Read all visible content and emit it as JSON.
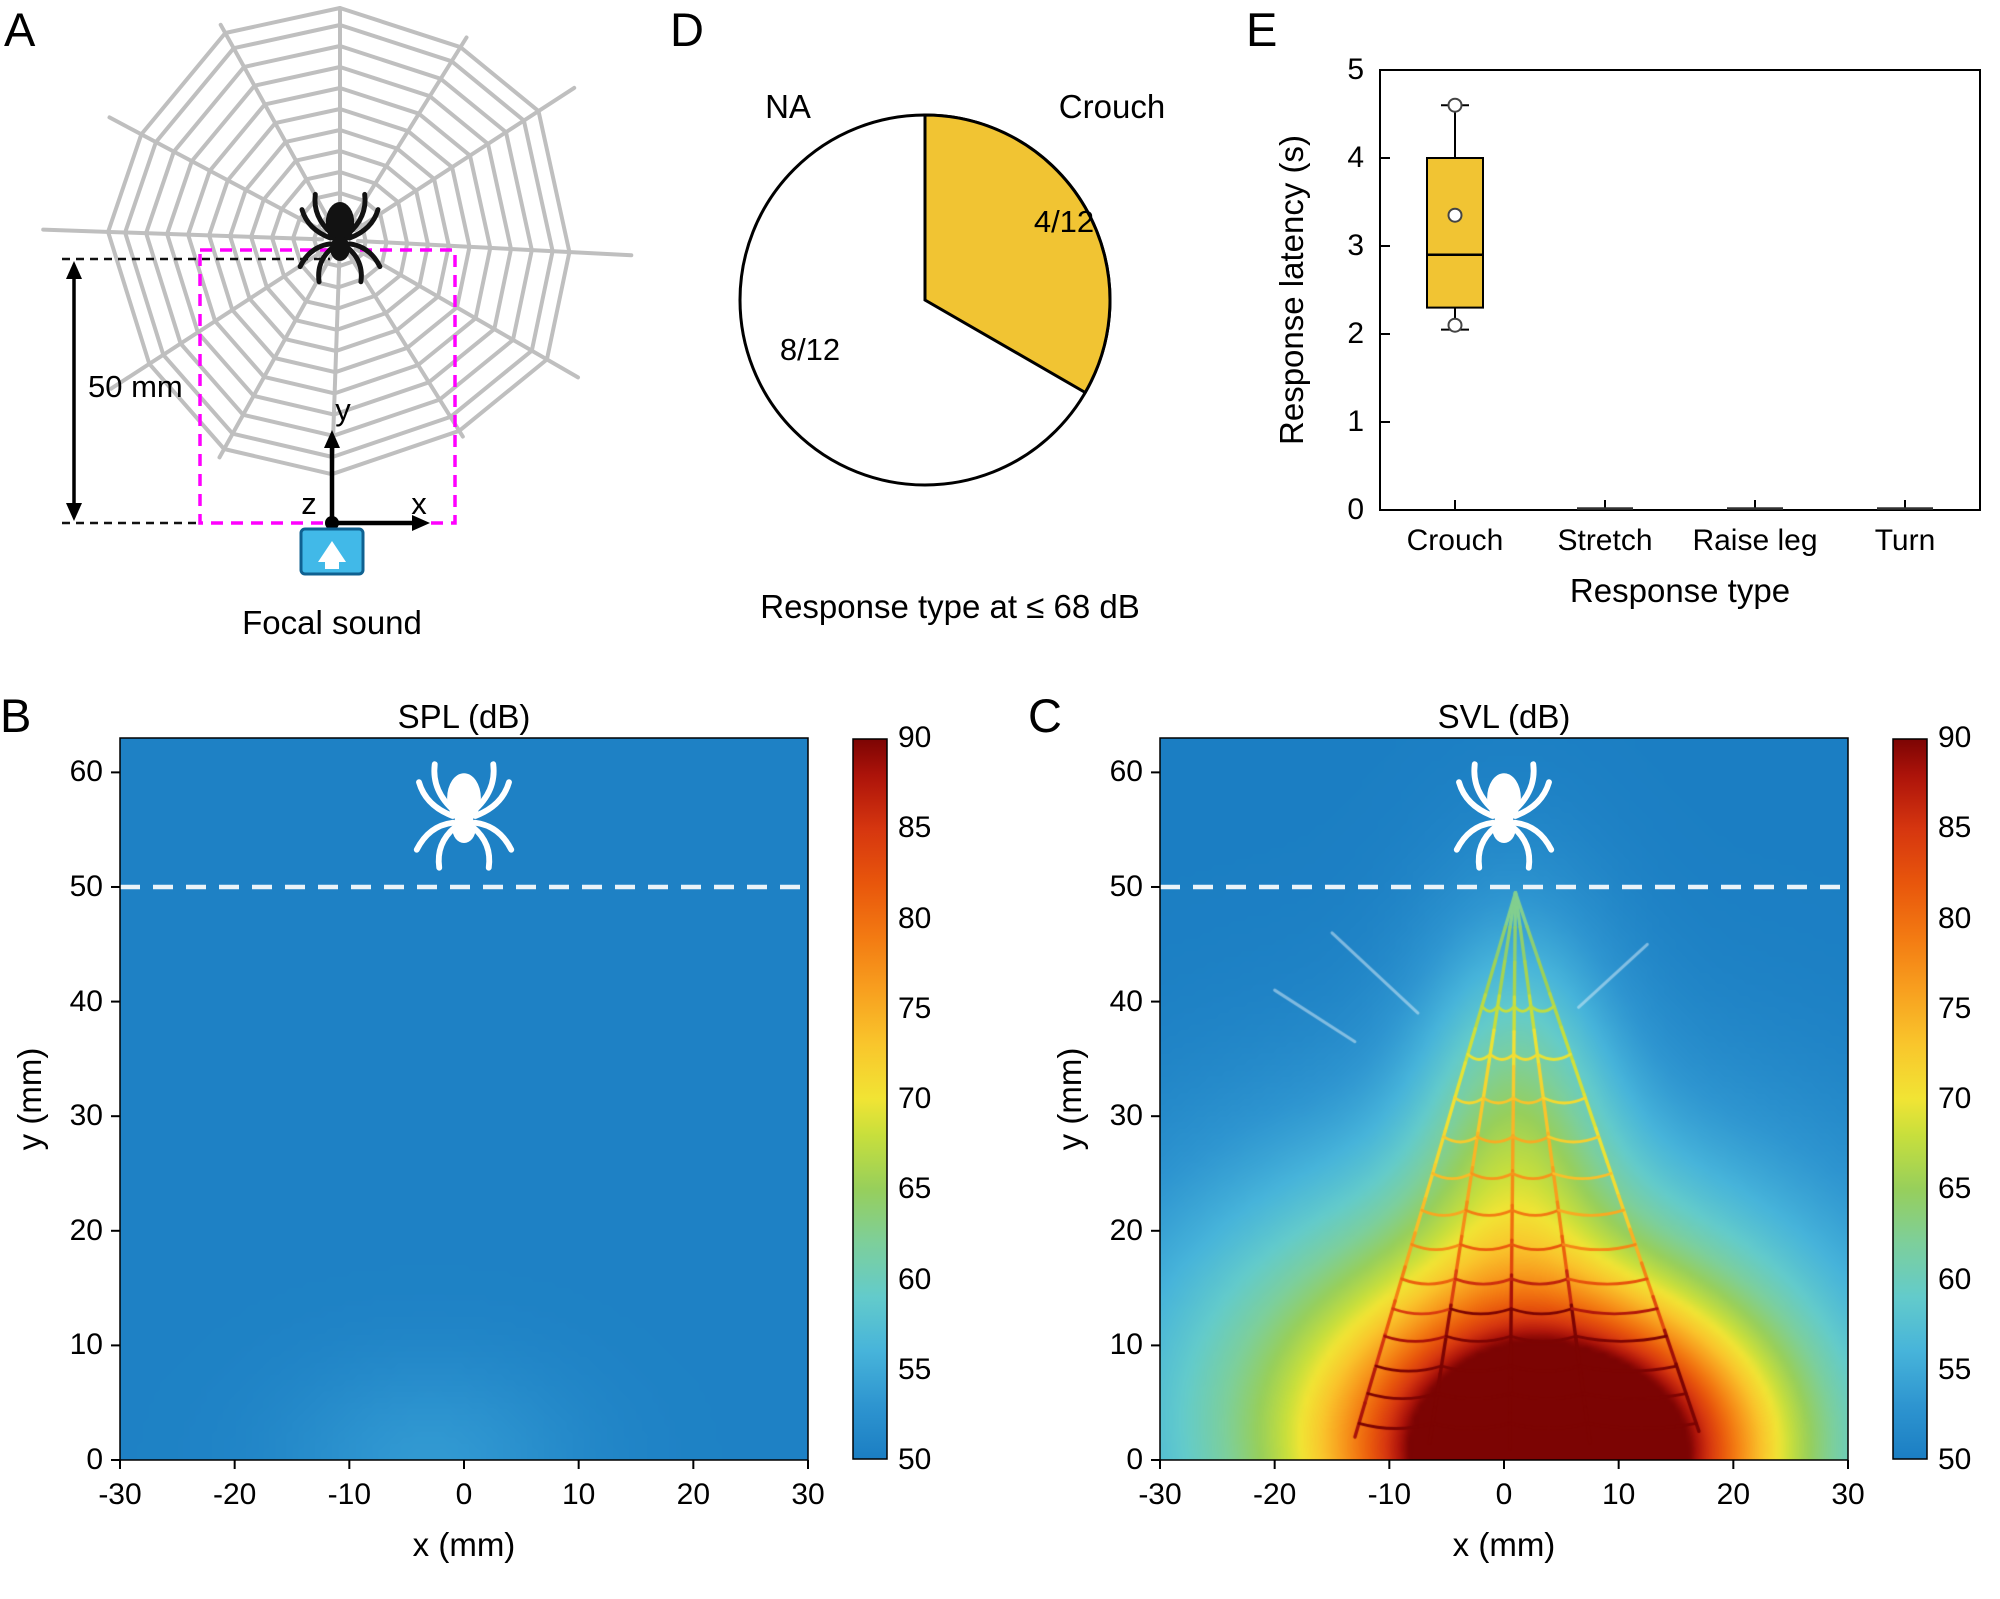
{
  "colors": {
    "box_yellow": "#F1C433",
    "web_gray": "#BFBFBF",
    "magenta": "#FF00FF",
    "speaker_blue": "#41B9E8",
    "dashed_white": "#E9F3F9"
  },
  "colormap": {
    "min": 50,
    "max": 90,
    "stops": [
      [
        50,
        "#1B7EC3"
      ],
      [
        53,
        "#2E95D0"
      ],
      [
        56,
        "#47B4DA"
      ],
      [
        59,
        "#63CBCB"
      ],
      [
        62,
        "#7DCF9B"
      ],
      [
        65,
        "#97CF5B"
      ],
      [
        68,
        "#C8DF3C"
      ],
      [
        70,
        "#F1E434"
      ],
      [
        73,
        "#F9C62C"
      ],
      [
        76,
        "#F8A01F"
      ],
      [
        79,
        "#F37A12"
      ],
      [
        82,
        "#E8560C"
      ],
      [
        85,
        "#D6360F"
      ],
      [
        88,
        "#AC130A"
      ],
      [
        90,
        "#7C0403"
      ]
    ]
  },
  "panel_a": {
    "label": "A",
    "scale_label": "50 mm",
    "axis": {
      "x": "x",
      "y": "y",
      "z": "z"
    },
    "caption": "Focal sound"
  },
  "panel_b": {
    "label": "B"
  },
  "panel_c": {
    "label": "C"
  },
  "panel_d": {
    "label": "D"
  },
  "panel_e": {
    "label": "E"
  },
  "chart_data": [
    {
      "id": "D",
      "type": "pie",
      "title": "Response type at ≤ 68 dB",
      "slices": [
        {
          "label": "Crouch",
          "count_label": "4/12",
          "value": 4,
          "color": "#F1C433"
        },
        {
          "label": "NA",
          "count_label": "8/12",
          "value": 8,
          "color": "#FFFFFF"
        }
      ],
      "direction": "clockwise-from-top"
    },
    {
      "id": "E",
      "type": "box",
      "xlabel": "Response type",
      "ylabel": "Response latency (s)",
      "ylim": [
        0,
        5
      ],
      "yticks": [
        0,
        1,
        2,
        3,
        4,
        5
      ],
      "categories": [
        "Crouch",
        "Stretch",
        "Raise leg",
        "Turn"
      ],
      "boxes": [
        {
          "category": "Crouch",
          "whisker_low": 2.05,
          "q1": 2.3,
          "median": 2.9,
          "q3": 4.0,
          "whisker_high": 4.6,
          "points": [
            2.1,
            3.35,
            4.6
          ],
          "fill": "#F1C433"
        },
        {
          "category": "Stretch",
          "median": 0
        },
        {
          "category": "Raise leg",
          "median": 0
        },
        {
          "category": "Turn",
          "median": 0
        }
      ]
    },
    {
      "id": "B",
      "type": "heatmap",
      "title": "SPL (dB)",
      "xlabel": "x (mm)",
      "ylabel": "y (mm)",
      "xlim": [
        -30,
        30
      ],
      "ylim": [
        0,
        63
      ],
      "xticks": [
        -30,
        -20,
        -10,
        0,
        10,
        20,
        30
      ],
      "yticks": [
        0,
        10,
        20,
        30,
        40,
        50,
        60
      ],
      "colorbar_ticks": [
        50,
        55,
        60,
        65,
        70,
        75,
        80,
        85,
        90
      ],
      "base_value": 50.4,
      "hotspots": [
        {
          "x": -3,
          "y": 0,
          "sx": 9,
          "sy": 6,
          "amp": 3
        }
      ],
      "dashed_line_y": 50,
      "spider": {
        "x": 0,
        "y": 56
      }
    },
    {
      "id": "C",
      "type": "heatmap",
      "title": "SVL (dB)",
      "xlabel": "x (mm)",
      "ylabel": "y (mm)",
      "xlim": [
        -30,
        30
      ],
      "ylim": [
        0,
        63
      ],
      "xticks": [
        -30,
        -20,
        -10,
        0,
        10,
        20,
        30
      ],
      "yticks": [
        0,
        10,
        20,
        30,
        40,
        50,
        60
      ],
      "colorbar_ticks": [
        50,
        55,
        60,
        65,
        70,
        75,
        80,
        85,
        90
      ],
      "base_value": 50,
      "hotspots": [
        {
          "x": 5,
          "y": 0,
          "sx": 11,
          "sy": 8,
          "amp": 40
        },
        {
          "x": 0,
          "y": 4,
          "sx": 20,
          "sy": 15,
          "amp": 23
        },
        {
          "x": 1,
          "y": 30,
          "sx": 6,
          "sy": 12,
          "amp": 10
        }
      ],
      "dashed_line_y": 50,
      "spider": {
        "x": 0,
        "y": 56
      },
      "web": {
        "apex": [
          1,
          49.5
        ],
        "base": [
          [
            -13,
            2
          ],
          [
            -6.5,
            1.5
          ],
          [
            0.5,
            1
          ],
          [
            7.5,
            1.5
          ],
          [
            17,
            2.5
          ]
        ],
        "rungs": [
          3.2,
          5.8,
          8.2,
          10.8,
          13.2,
          15.8,
          18.8,
          21.8,
          25,
          28.2,
          31.6,
          35.4,
          39.6
        ]
      }
    }
  ]
}
